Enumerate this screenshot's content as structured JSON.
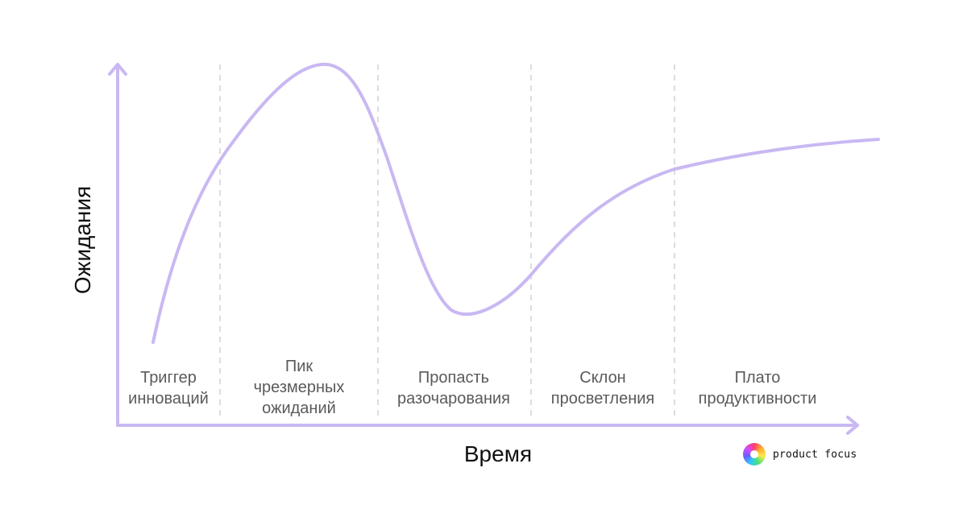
{
  "axes": {
    "y_label": "Ожидания",
    "x_label": "Время"
  },
  "phases": [
    {
      "label": "Триггер\nинноваций"
    },
    {
      "label": "Пик\nчрезмерных\nожиданий"
    },
    {
      "label": "Пропасть\nразочарования"
    },
    {
      "label": "Склон\nпросветления"
    },
    {
      "label": "Плато\nпродуктивности"
    }
  ],
  "brand": {
    "name": "product focus"
  },
  "colors": {
    "curve": "#c9b8f2",
    "axis": "#c9b8f2",
    "divider": "#dcdce4",
    "label_text": "#5a5a5a",
    "axis_text": "#111111"
  }
}
